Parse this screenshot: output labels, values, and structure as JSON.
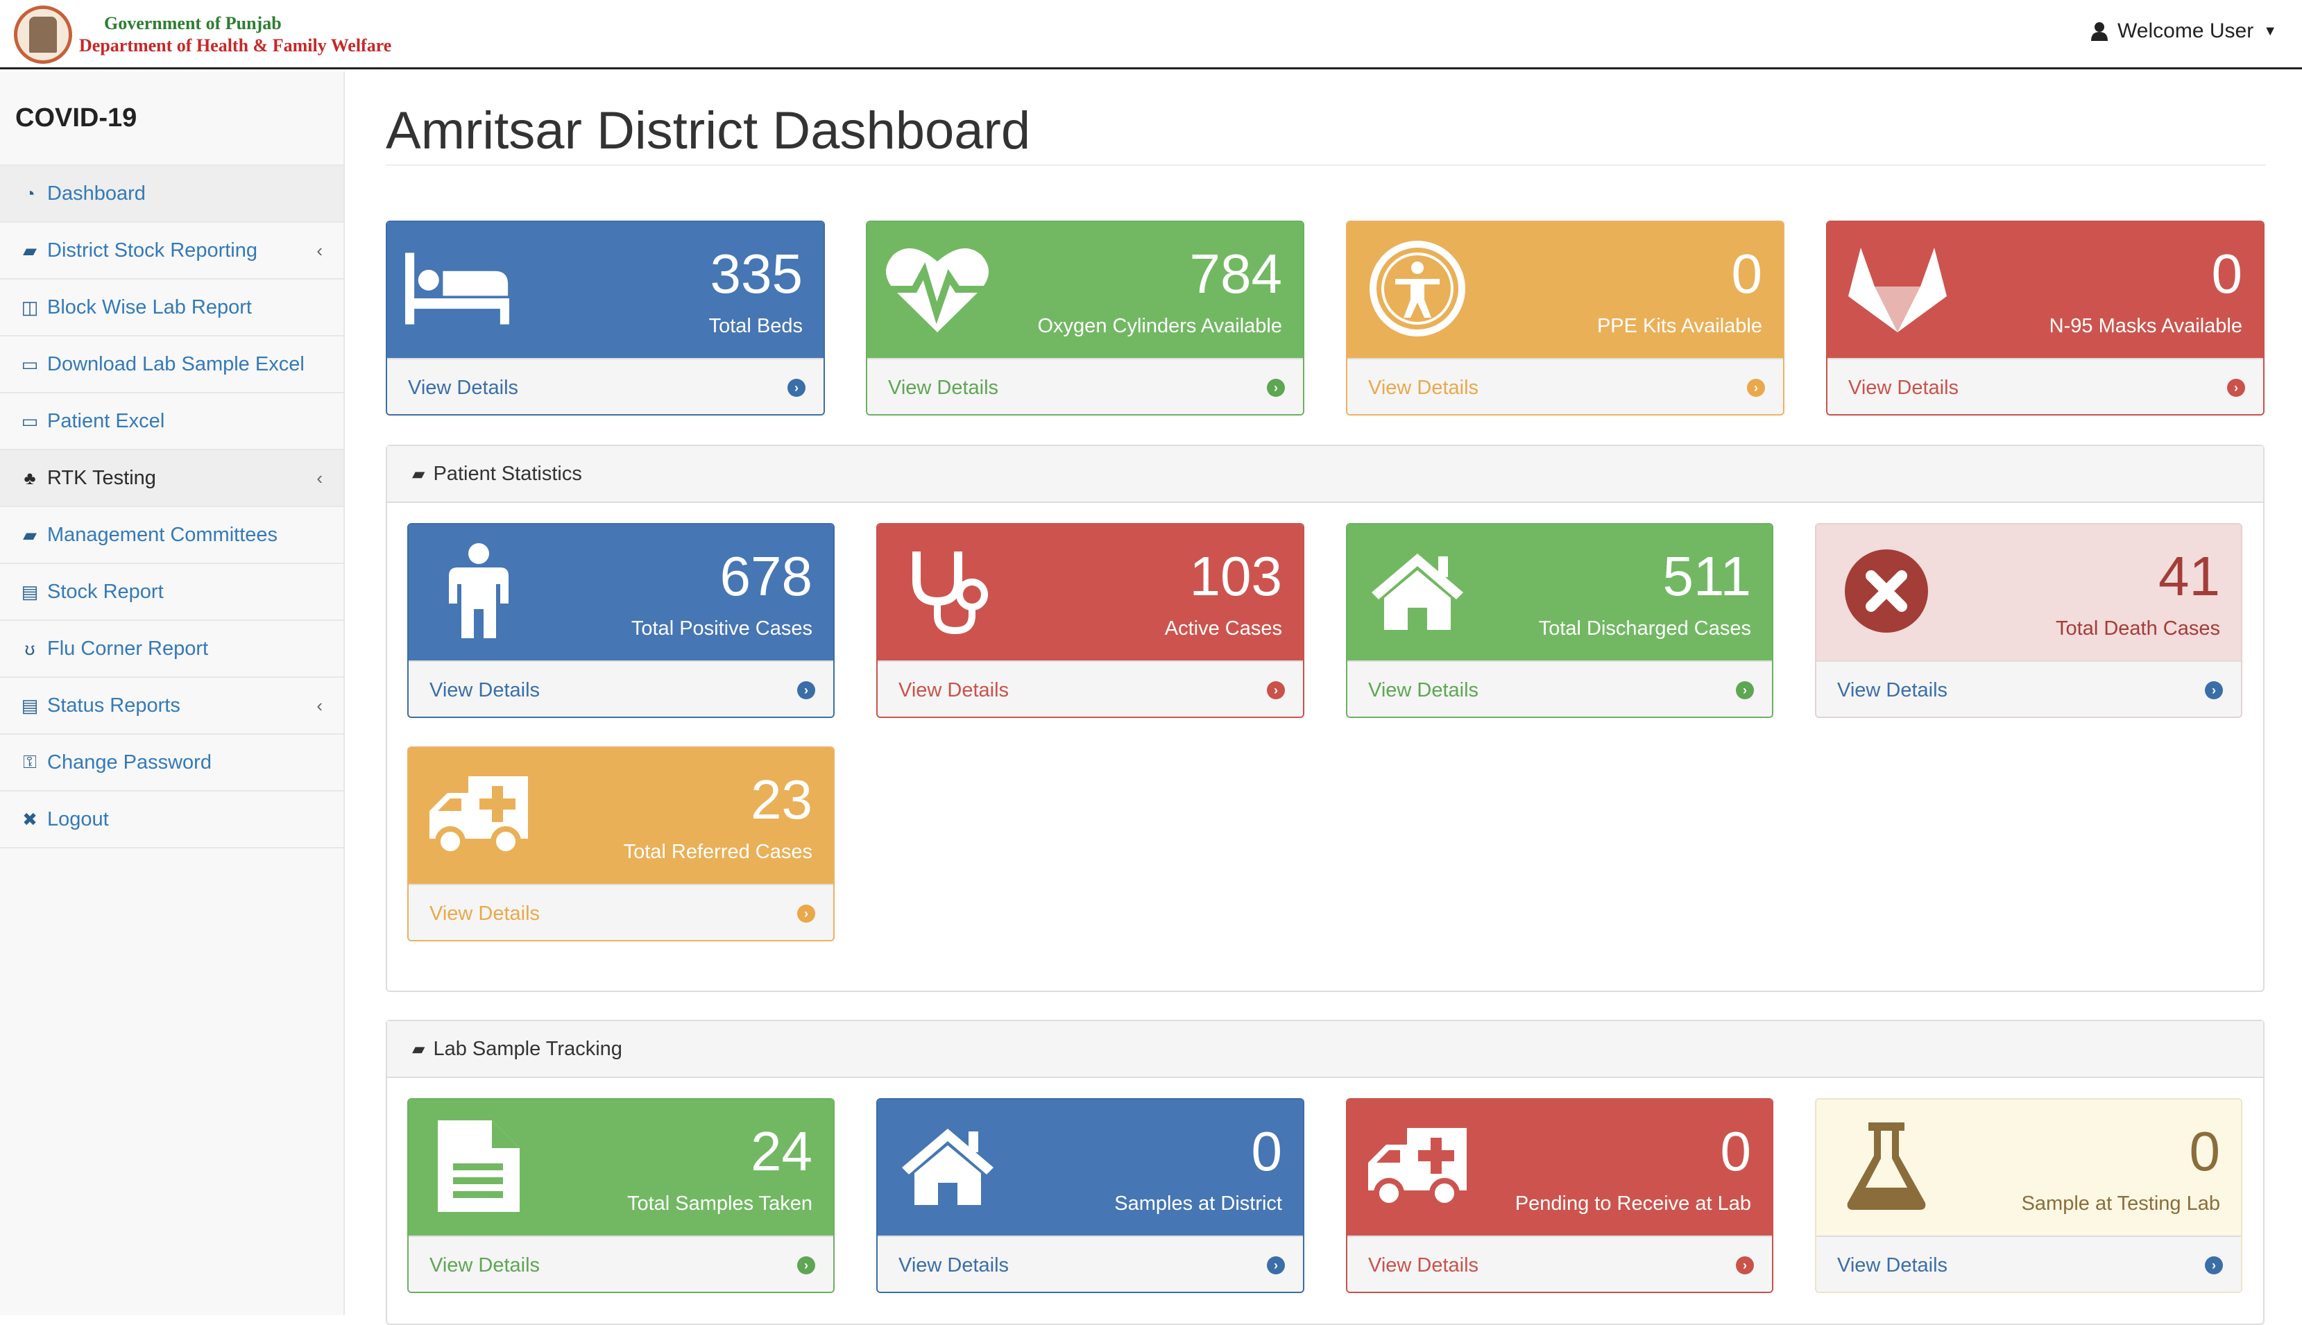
{
  "header": {
    "org_line1": "Government of Punjab",
    "org_line2": "Department of Health & Family Welfare",
    "user_label": "Welcome User"
  },
  "sidebar": {
    "title": "COVID-19",
    "items": [
      {
        "label": "Dashboard",
        "icon": "dashboard-icon"
      },
      {
        "label": "District Stock Reporting",
        "icon": "book-icon"
      },
      {
        "label": "Block Wise Lab Report",
        "icon": "columns-icon"
      },
      {
        "label": "Download Lab Sample Excel",
        "icon": "desktop-icon"
      },
      {
        "label": "Patient Excel",
        "icon": "desktop-icon"
      },
      {
        "label": "RTK Testing",
        "icon": "tree-icon"
      },
      {
        "label": "Management Committees",
        "icon": "book-icon"
      },
      {
        "label": "Stock Report",
        "icon": "file-icon"
      },
      {
        "label": "Flu Corner Report",
        "icon": "stethoscope-icon"
      },
      {
        "label": "Status Reports",
        "icon": "file-icon"
      },
      {
        "label": "Change Password",
        "icon": "key-icon"
      },
      {
        "label": "Logout",
        "icon": "close-icon"
      }
    ]
  },
  "page": {
    "title": "Amritsar District Dashboard"
  },
  "view_details": "View Details",
  "stock_cards": [
    {
      "value": "335",
      "label": "Total Beds",
      "icon": "bed-icon",
      "color": "#4676b3"
    },
    {
      "value": "784",
      "label": "Oxygen Cylinders Available",
      "icon": "heartbeat-icon",
      "color": "#72b863"
    },
    {
      "value": "0",
      "label": "PPE Kits Available",
      "icon": "universal-access-icon",
      "color": "#eab057"
    },
    {
      "value": "0",
      "label": "N-95 Masks Available",
      "icon": "gitlab-icon",
      "color": "#cd544e"
    }
  ],
  "patient_statistics": {
    "title": "Patient Statistics",
    "cards": [
      {
        "value": "678",
        "label": "Total Positive Cases",
        "icon": "male-icon",
        "color": "#4676b3"
      },
      {
        "value": "103",
        "label": "Active Cases",
        "icon": "stethoscope-icon",
        "color": "#cd544e"
      },
      {
        "value": "511",
        "label": "Total Discharged Cases",
        "icon": "home-icon",
        "color": "#72b863"
      },
      {
        "value": "41",
        "label": "Total Death Cases",
        "icon": "times-circle-icon",
        "color": "#f2dcdc"
      },
      {
        "value": "23",
        "label": "Total Referred Cases",
        "icon": "ambulance-icon",
        "color": "#eab057"
      }
    ]
  },
  "lab_sample_tracking": {
    "title": "Lab Sample Tracking",
    "cards": [
      {
        "value": "24",
        "label": "Total Samples Taken",
        "icon": "file-text-icon",
        "color": "#72b863"
      },
      {
        "value": "0",
        "label": "Samples at District",
        "icon": "home-icon",
        "color": "#4676b3"
      },
      {
        "value": "0",
        "label": "Pending to Receive at Lab",
        "icon": "ambulance-icon",
        "color": "#cd544e"
      },
      {
        "value": "0",
        "label": "Sample at Testing Lab",
        "icon": "flask-icon",
        "color": "#fcf8e4"
      }
    ]
  }
}
